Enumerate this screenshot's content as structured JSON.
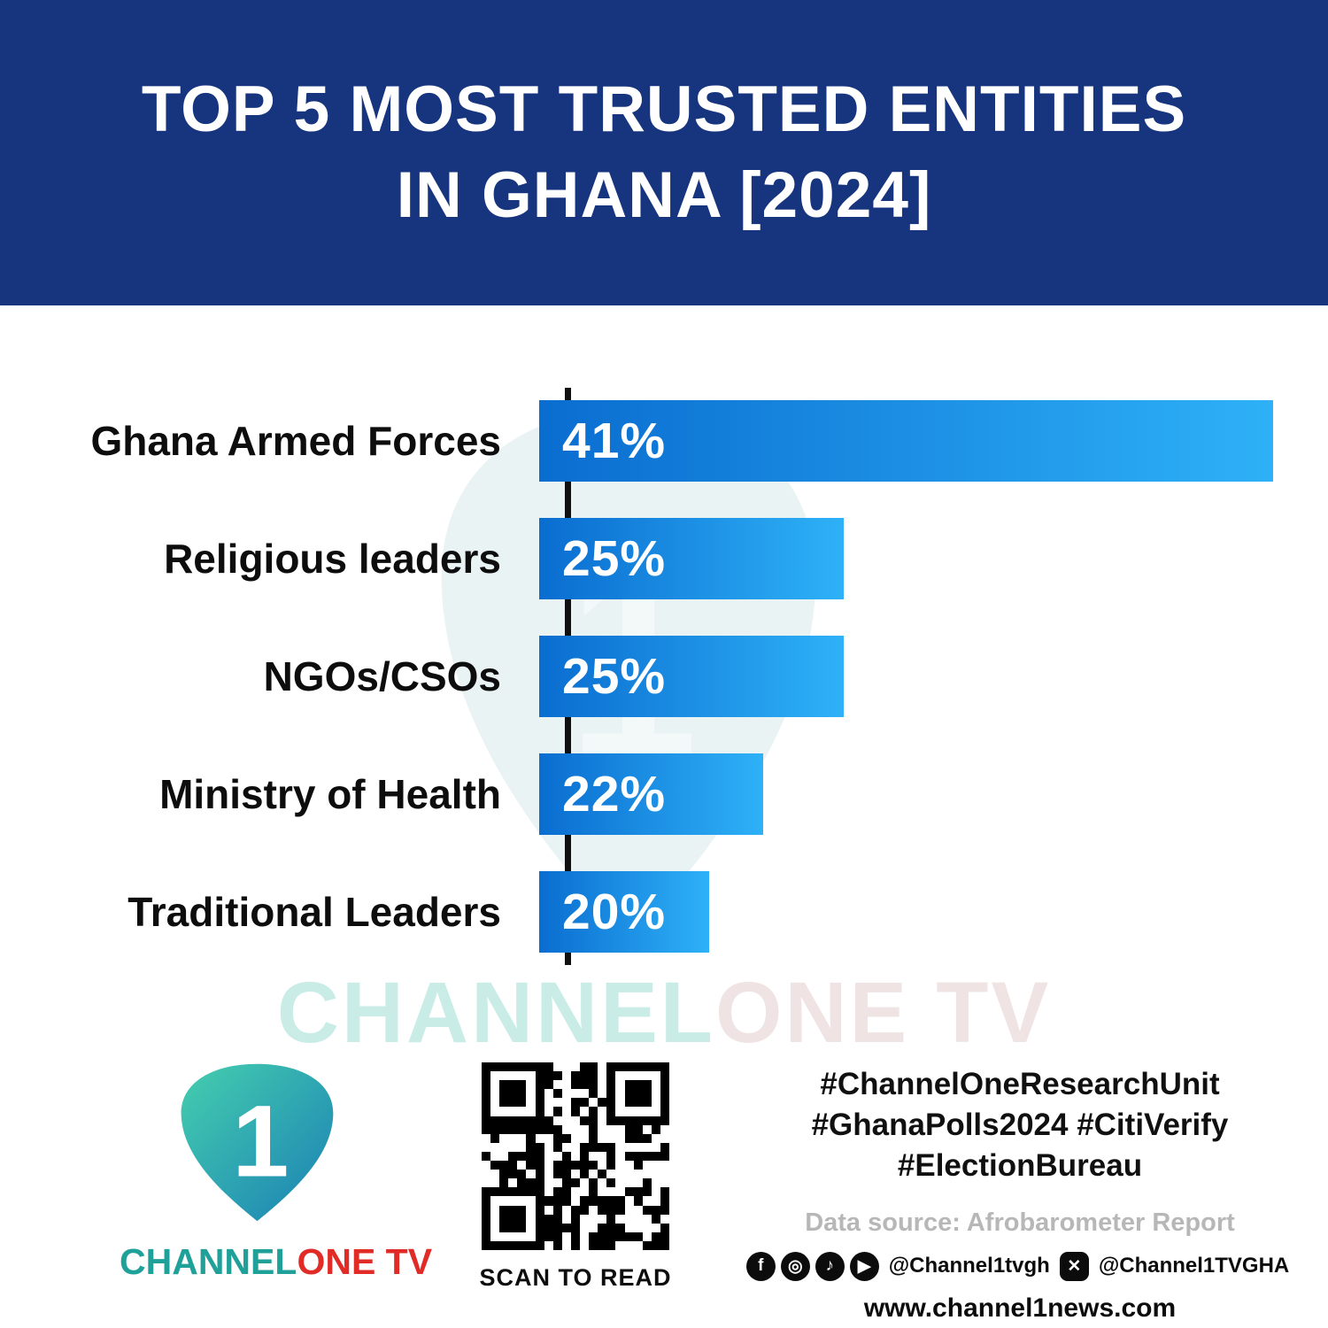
{
  "header": {
    "title_line1": "TOP 5 MOST TRUSTED ENTITIES",
    "title_line2": "IN GHANA [2024]"
  },
  "chart_data": {
    "type": "bar",
    "orientation": "horizontal",
    "title": "Top 5 Most Trusted Entities in Ghana [2024]",
    "categories": [
      "Ghana Armed Forces",
      "Religious leaders",
      "NGOs/CSOs",
      "Ministry of Health",
      "Traditional Leaders"
    ],
    "values": [
      41,
      25,
      25,
      22,
      20
    ],
    "value_labels": [
      "41%",
      "25%",
      "25%",
      "22%",
      "20%"
    ],
    "unit": "%",
    "grid": false,
    "legend": false,
    "display_widths_pct": [
      100,
      41.5,
      41.5,
      30.5,
      23.2
    ]
  },
  "watermark": {
    "part1": "CHANNEL",
    "part2": "ONE TV"
  },
  "footer": {
    "logo": {
      "number": "1",
      "part1": "CHANNEL",
      "part2": "ONE TV"
    },
    "qr_caption": "SCAN TO READ",
    "hashtags_line1": "#ChannelOneResearchUnit",
    "hashtags_line2": "#GhanaPolls2024 #CitiVerify",
    "hashtags_line3": "#ElectionBureau",
    "data_source": "Data source: Afrobarometer Report",
    "social": {
      "handle1": "@Channel1tvgh",
      "handle2": "@Channel1TVGHA",
      "icons": [
        "facebook-icon",
        "instagram-icon",
        "tiktok-icon",
        "youtube-icon",
        "x-icon"
      ],
      "glyphs": {
        "facebook": "f",
        "instagram": "◎",
        "tiktok": "♪",
        "youtube": "▶",
        "x": "✕"
      }
    },
    "website": "www.channel1news.com"
  },
  "colors": {
    "header_bg": "#16357E",
    "bar_gradient_start": "#0A6DD0",
    "bar_gradient_end": "#2EB1F7",
    "accent_teal": "#1FA098",
    "accent_red": "#E02B27",
    "watermark_teal": "#C9ECE7"
  }
}
